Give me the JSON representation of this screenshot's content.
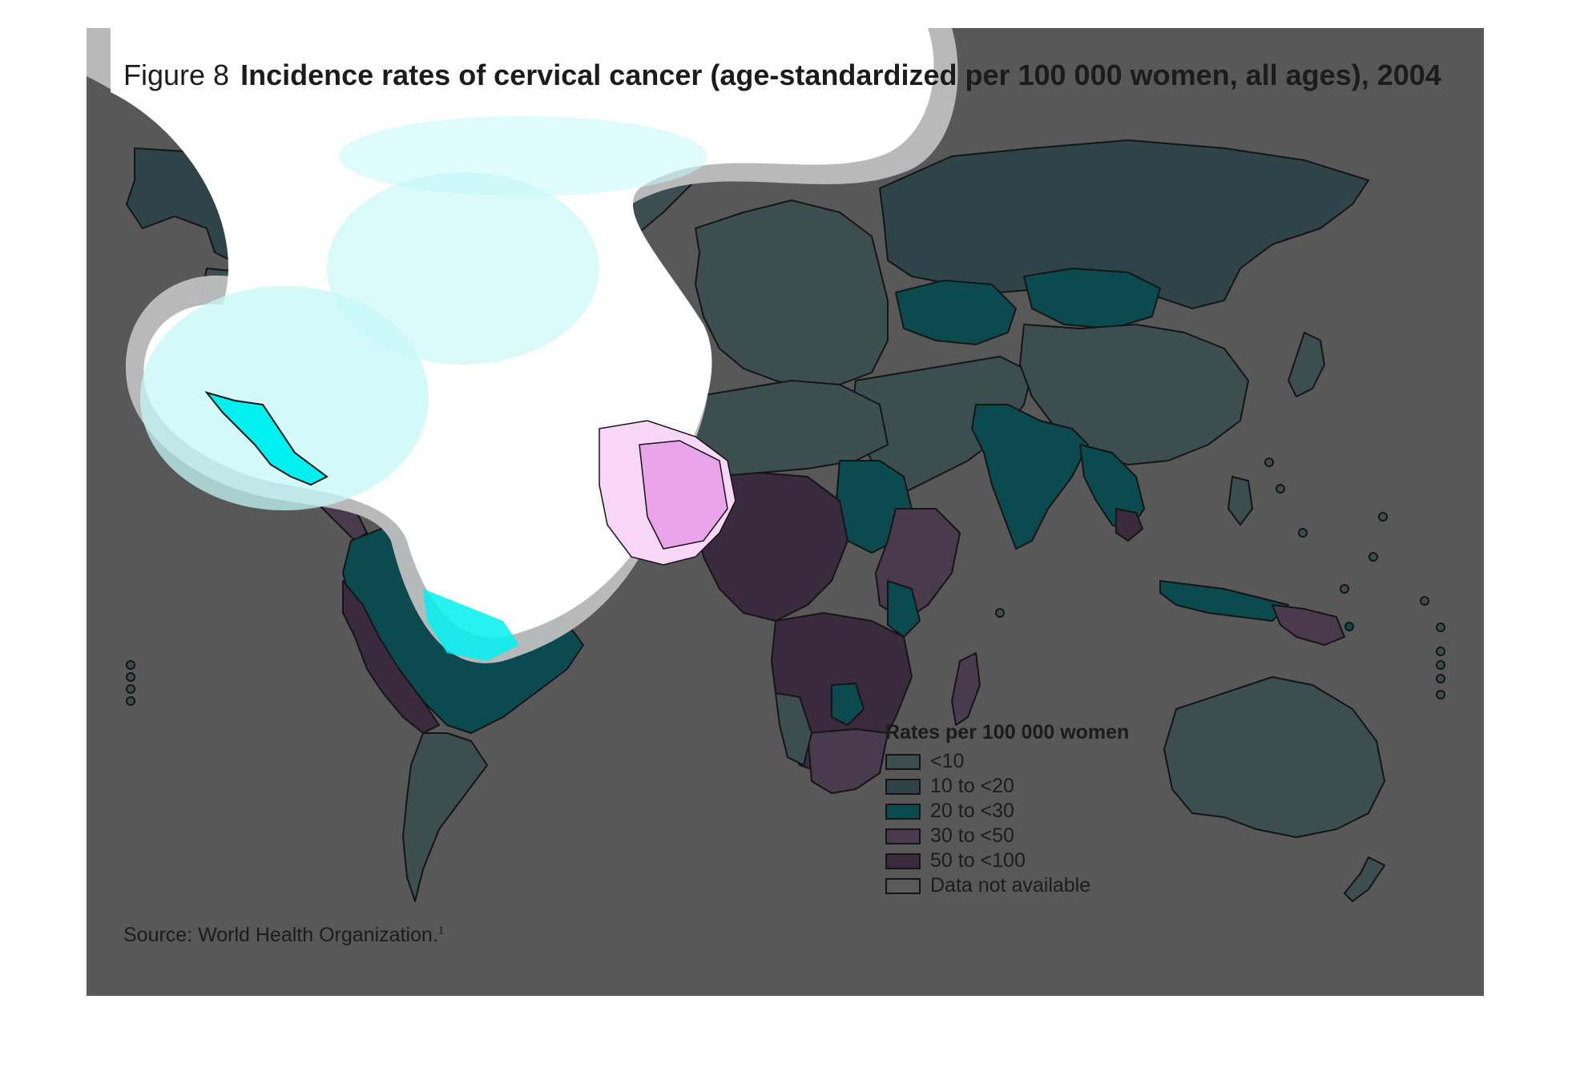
{
  "title": {
    "figure_label": "Figure 8",
    "text": "Incidence rates of cervical cancer (age-standardized per 100 000 women, all ages), 2004"
  },
  "source": {
    "text": "Source: World Health Organization.",
    "footnote": "1"
  },
  "legend": {
    "title": "Rates per 100 000 women",
    "items": [
      {
        "label": "<10",
        "color": "#3c4e50"
      },
      {
        "label": "10 to <20",
        "color": "#2f4448"
      },
      {
        "label": "20 to <30",
        "color": "#0b4a4e"
      },
      {
        "label": "30 to <50",
        "color": "#493a4d"
      },
      {
        "label": "50 to <100",
        "color": "#3a2a3d"
      },
      {
        "label": "Data not available",
        "color": "#5a5a5a"
      }
    ]
  },
  "colors": {
    "background": "#585858",
    "border": "#151515",
    "highlight_light_cyan": "#c6f7f7",
    "highlight_cyan": "#00f0f0",
    "highlight_light_pink": "#f8d6f8",
    "highlight_pink": "#eaa4ea",
    "highlight_halo": "#bfbfbf"
  }
}
